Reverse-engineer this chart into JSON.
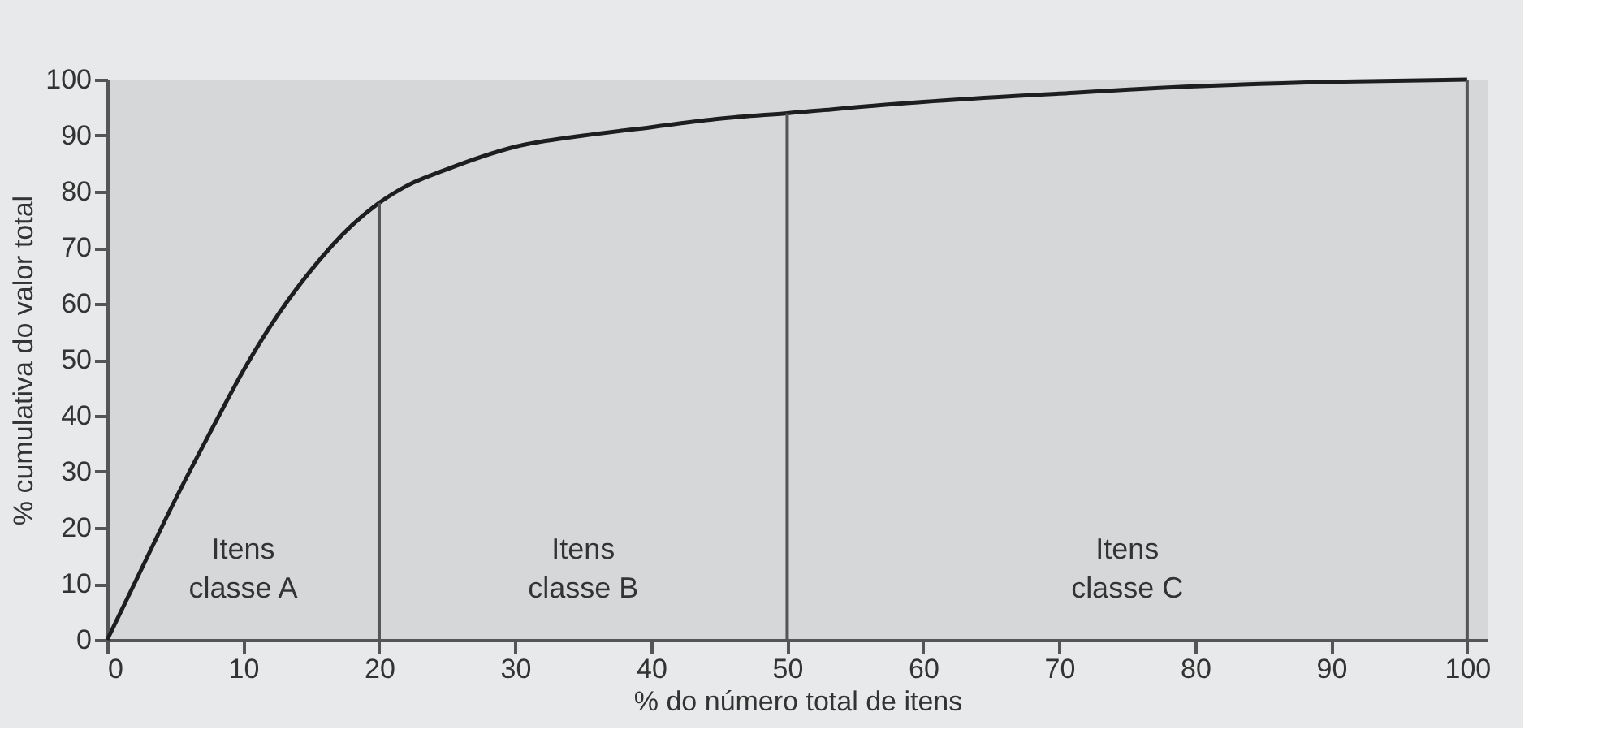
{
  "chart_data": {
    "type": "line",
    "xlabel": "% do número total de itens",
    "ylabel": "% cumulativa do valor total",
    "x": [
      0,
      2,
      5,
      8,
      10,
      12,
      15,
      18,
      20,
      22,
      25,
      30,
      35,
      40,
      45,
      50,
      60,
      70,
      80,
      90,
      100
    ],
    "series": [
      {
        "color": "#1e1e1e",
        "values": [
          0,
          10,
          25,
          39,
          48,
          56,
          66,
          74,
          78,
          81,
          84,
          88,
          90,
          91.5,
          93,
          94,
          96,
          97.5,
          98.8,
          99.6,
          100
        ]
      }
    ],
    "xlim": [
      0,
      101.5
    ],
    "ylim": [
      0,
      100
    ],
    "xticks": [
      0,
      10,
      20,
      30,
      40,
      50,
      60,
      70,
      80,
      90,
      100
    ],
    "yticks": [
      0,
      10,
      20,
      30,
      40,
      50,
      60,
      70,
      80,
      90,
      100
    ],
    "ref_lines": [
      {
        "axis": "x",
        "value": 20,
        "color": "#555555"
      },
      {
        "axis": "x",
        "value": 50,
        "color": "#555555"
      },
      {
        "axis": "x",
        "value": 100,
        "color": "#555555"
      }
    ],
    "annotations": [
      "Itens\nclasse A",
      "Itens\nclasse B",
      "Itens\nclasse C"
    ],
    "grid": false,
    "marker": "none",
    "line_style": "solid"
  }
}
